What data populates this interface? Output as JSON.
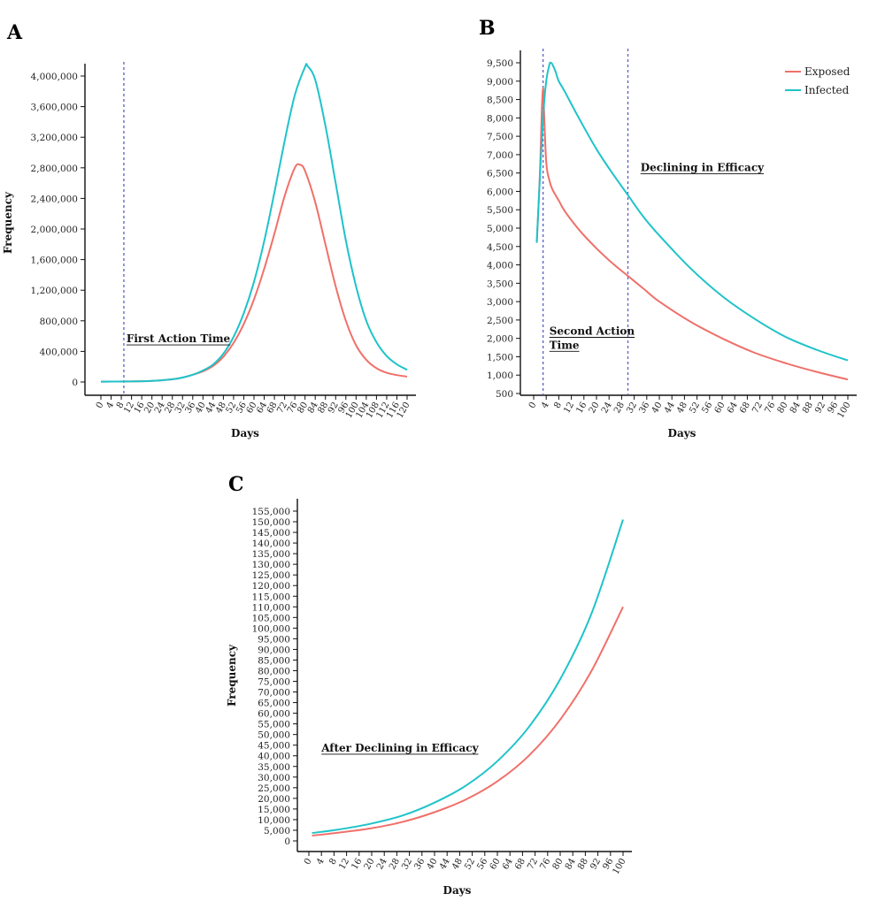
{
  "colors": {
    "exposed": "#f0706a",
    "infected": "#1fc3c9",
    "vline": "#5b5fc7",
    "axis": "#111111"
  },
  "chart_data": [
    {
      "panel": "A",
      "type": "line",
      "xlabel": "Days",
      "ylabel": "Frequency",
      "xlim": [
        0,
        120
      ],
      "ylim": [
        0,
        4000000
      ],
      "xticks": [
        0,
        4,
        8,
        12,
        16,
        20,
        24,
        28,
        32,
        36,
        40,
        44,
        48,
        52,
        56,
        60,
        64,
        68,
        72,
        76,
        80,
        84,
        88,
        92,
        96,
        100,
        104,
        108,
        112,
        116,
        120
      ],
      "yticks": [
        0,
        400000,
        800000,
        1200000,
        1600000,
        2000000,
        2400000,
        2800000,
        3200000,
        3600000,
        4000000
      ],
      "ytick_labels": [
        "0",
        "400,000",
        "800,000",
        "1,200,000",
        "1,600,000",
        "2,000,000",
        "2,400,000",
        "2,800,000",
        "3,200,000",
        "3,600,000",
        "4,000,000"
      ],
      "vlines": [
        9
      ],
      "annotations": [
        {
          "text": "First Action Time",
          "x": 10,
          "y": 520000
        }
      ],
      "series": [
        {
          "key": "exposed",
          "x": [
            0,
            10,
            20,
            30,
            36,
            40,
            44,
            48,
            52,
            56,
            60,
            64,
            68,
            72,
            76,
            78,
            80,
            84,
            88,
            92,
            96,
            100,
            104,
            108,
            112,
            116,
            120
          ],
          "y": [
            5000,
            7000,
            14000,
            45000,
            95000,
            140000,
            210000,
            330000,
            510000,
            760000,
            1080000,
            1480000,
            1940000,
            2430000,
            2800000,
            2840000,
            2760000,
            2350000,
            1800000,
            1250000,
            800000,
            480000,
            290000,
            180000,
            120000,
            90000,
            70000
          ]
        },
        {
          "key": "infected",
          "x": [
            0,
            10,
            20,
            30,
            36,
            40,
            44,
            48,
            52,
            56,
            60,
            64,
            68,
            72,
            76,
            80,
            81,
            84,
            88,
            92,
            96,
            100,
            104,
            108,
            112,
            116,
            120
          ],
          "y": [
            5000,
            7000,
            14000,
            45000,
            95000,
            150000,
            230000,
            370000,
            590000,
            900000,
            1310000,
            1840000,
            2480000,
            3150000,
            3750000,
            4120000,
            4130000,
            3950000,
            3350000,
            2600000,
            1850000,
            1250000,
            800000,
            520000,
            340000,
            230000,
            160000
          ]
        }
      ]
    },
    {
      "panel": "B",
      "type": "line",
      "xlabel": "Days",
      "xlim": [
        0,
        100
      ],
      "ylim": [
        500,
        9500
      ],
      "xticks": [
        0,
        4,
        8,
        12,
        16,
        20,
        24,
        28,
        32,
        36,
        40,
        44,
        48,
        52,
        56,
        60,
        64,
        68,
        72,
        76,
        80,
        84,
        88,
        92,
        96,
        100
      ],
      "yticks": [
        500,
        1000,
        1500,
        2000,
        2500,
        3000,
        3500,
        4000,
        4500,
        5000,
        5500,
        6000,
        6500,
        7000,
        7500,
        8000,
        8500,
        9000,
        9500
      ],
      "ytick_labels": [
        "500",
        "1,000",
        "1,500",
        "2,000",
        "2,500",
        "3,000",
        "3,500",
        "4,000",
        "4,500",
        "5,000",
        "5,500",
        "6,000",
        "6,500",
        "7,000",
        "7,500",
        "8,000",
        "8,500",
        "9,000",
        "9,500"
      ],
      "vlines": [
        3,
        30
      ],
      "annotations": [
        {
          "text": "Declining in Efficacy",
          "x": 34,
          "y": 6550
        },
        {
          "text": "Second Action",
          "x": 5,
          "y": 2100
        },
        {
          "text": "Time",
          "x": 5,
          "y": 1720
        }
      ],
      "legend": {
        "position": "top-right",
        "entries": [
          {
            "key": "exposed",
            "label": "Exposed"
          },
          {
            "key": "infected",
            "label": "Infected"
          }
        ]
      },
      "series": [
        {
          "key": "exposed",
          "x": [
            1,
            2,
            2.6,
            3,
            3.2,
            4,
            5,
            6,
            8,
            10,
            15,
            20,
            25,
            30,
            35,
            40,
            50,
            60,
            70,
            80,
            90,
            100
          ],
          "y": [
            4600,
            6500,
            8200,
            8800,
            8400,
            6800,
            6300,
            6050,
            5750,
            5450,
            4900,
            4450,
            4050,
            3700,
            3350,
            3000,
            2450,
            2000,
            1620,
            1330,
            1090,
            880
          ]
        },
        {
          "key": "infected",
          "x": [
            1,
            2,
            3,
            4,
            5,
            5.5,
            6,
            7,
            8,
            10,
            15,
            20,
            25,
            30,
            35,
            40,
            50,
            60,
            70,
            80,
            90,
            100
          ],
          "y": [
            4600,
            6400,
            8000,
            9000,
            9450,
            9500,
            9450,
            9250,
            9000,
            8700,
            7900,
            7150,
            6500,
            5900,
            5300,
            4800,
            3900,
            3150,
            2550,
            2050,
            1690,
            1400
          ]
        }
      ]
    },
    {
      "panel": "C",
      "type": "line",
      "xlabel": "Days",
      "ylabel": "Frequency",
      "xlim": [
        0,
        100
      ],
      "ylim": [
        0,
        155000
      ],
      "xticks": [
        0,
        4,
        8,
        12,
        16,
        20,
        24,
        28,
        32,
        36,
        40,
        44,
        48,
        52,
        56,
        60,
        64,
        68,
        72,
        76,
        80,
        84,
        88,
        92,
        96,
        100
      ],
      "yticks": [
        0,
        5000,
        10000,
        15000,
        20000,
        25000,
        30000,
        35000,
        40000,
        45000,
        50000,
        55000,
        60000,
        65000,
        70000,
        75000,
        80000,
        85000,
        90000,
        95000,
        100000,
        105000,
        110000,
        115000,
        120000,
        125000,
        130000,
        135000,
        140000,
        145000,
        150000,
        155000
      ],
      "ytick_labels": [
        "0",
        "5,000",
        "10,000",
        "15,000",
        "20,000",
        "25,000",
        "30,000",
        "35,000",
        "40,000",
        "45,000",
        "50,000",
        "55,000",
        "60,000",
        "65,000",
        "70,000",
        "75,000",
        "80,000",
        "85,000",
        "90,000",
        "95,000",
        "100,000",
        "105,000",
        "110,000",
        "115,000",
        "120,000",
        "125,000",
        "130,000",
        "135,000",
        "140,000",
        "145,000",
        "150,000",
        "155,000"
      ],
      "annotations": [
        {
          "text": "After Declining in Efficacy",
          "x": 4,
          "y": 42000
        }
      ],
      "series": [
        {
          "key": "exposed",
          "x": [
            1,
            10,
            20,
            30,
            40,
            50,
            60,
            70,
            80,
            90,
            100
          ],
          "y": [
            2500,
            4000,
            6000,
            9000,
            13500,
            19500,
            28000,
            40000,
            57000,
            80000,
            110000
          ]
        },
        {
          "key": "infected",
          "x": [
            1,
            10,
            20,
            30,
            40,
            50,
            60,
            70,
            80,
            90,
            100
          ],
          "y": [
            3700,
            5500,
            8200,
            12000,
            18000,
            26000,
            37500,
            53500,
            76000,
            107000,
            151000
          ]
        }
      ]
    }
  ]
}
